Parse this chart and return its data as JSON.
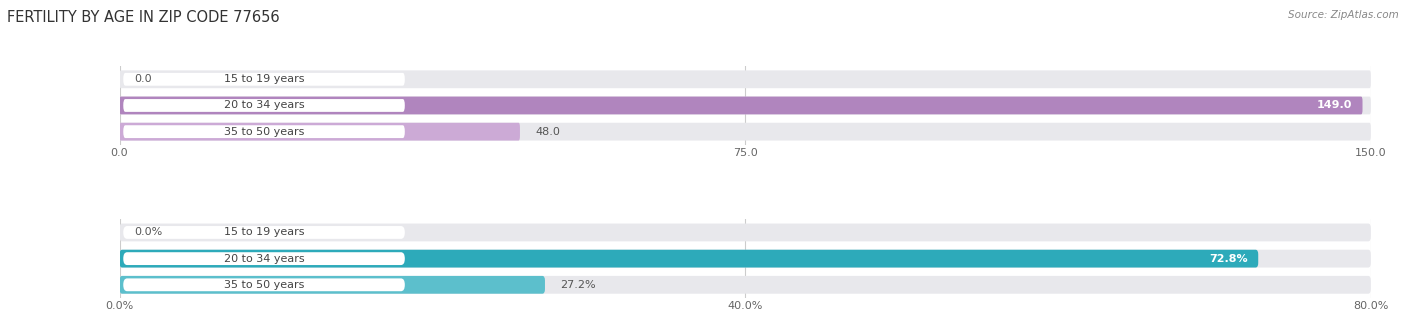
{
  "title": "FERTILITY BY AGE IN ZIP CODE 77656",
  "source": "Source: ZipAtlas.com",
  "top_chart": {
    "categories": [
      "15 to 19 years",
      "20 to 34 years",
      "35 to 50 years"
    ],
    "values": [
      0.0,
      149.0,
      48.0
    ],
    "bar_color_strong": "#b085be",
    "bar_color_light": "#ccaad6",
    "xlim": [
      0,
      150
    ],
    "xticks": [
      0.0,
      75.0,
      150.0
    ],
    "xtick_labels": [
      "0.0",
      "75.0",
      "150.0"
    ],
    "value_labels": [
      "0.0",
      "149.0",
      "48.0"
    ],
    "value_inside": [
      false,
      true,
      false
    ]
  },
  "bottom_chart": {
    "categories": [
      "15 to 19 years",
      "20 to 34 years",
      "35 to 50 years"
    ],
    "values": [
      0.0,
      72.8,
      27.2
    ],
    "bar_color_strong": "#2daaba",
    "bar_color_light": "#5cbfcc",
    "xlim": [
      0,
      80
    ],
    "xticks": [
      0.0,
      40.0,
      80.0
    ],
    "xtick_labels": [
      "0.0%",
      "40.0%",
      "80.0%"
    ],
    "value_labels": [
      "0.0%",
      "72.8%",
      "27.2%"
    ],
    "value_inside": [
      false,
      true,
      false
    ]
  },
  "bar_bg_color": "#e8e8ec",
  "bar_bg_strong": "#dddde4",
  "label_badge_color": "#ffffff",
  "bar_height": 0.68,
  "label_fontsize": 8.0,
  "tick_fontsize": 8.0,
  "title_fontsize": 10.5,
  "source_fontsize": 7.5,
  "rounding": 0.35
}
